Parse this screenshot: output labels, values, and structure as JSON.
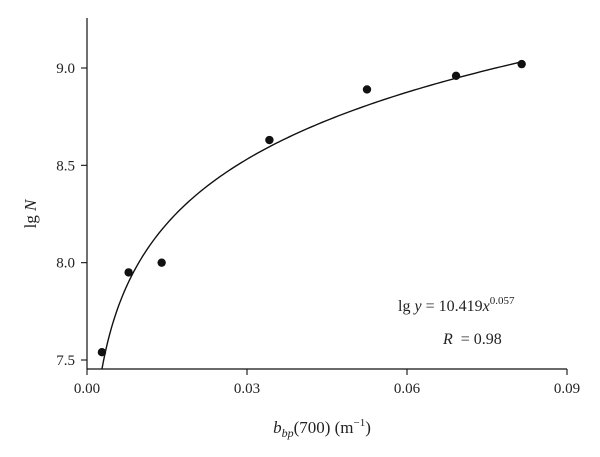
{
  "chart_data": {
    "type": "scatter",
    "title": "",
    "xlabel": {
      "main": "b",
      "sub": "bp",
      "rest": "(700) (m",
      "sup": "−1",
      "end": ")"
    },
    "ylabel": {
      "prefix": "lg ",
      "var": "N"
    },
    "xlim": [
      0,
      0.09
    ],
    "ylim": [
      7.5,
      9.25
    ],
    "xticks": [
      0.0,
      0.03,
      0.06,
      0.09
    ],
    "xtick_labels": [
      "0.00",
      "0.03",
      "0.06",
      "0.09"
    ],
    "yticks": [
      7.5,
      8.0,
      8.5,
      9.0
    ],
    "ytick_labels": [
      "7.5",
      "8.0",
      "8.5",
      "9.0"
    ],
    "grid": false,
    "series": [
      {
        "x": [
          0.0028,
          0.0078,
          0.014,
          0.0342,
          0.0525,
          0.0692,
          0.0815
        ],
        "y": [
          7.54,
          7.95,
          8.0,
          8.63,
          8.89,
          8.96,
          9.02
        ]
      }
    ],
    "fit": {
      "a": 10.419,
      "b": 0.057,
      "x_range": [
        0.0028,
        0.0815
      ]
    },
    "annotations": {
      "equation": {
        "lhs_fn": "lg ",
        "lhs_var": "y",
        "eq": " = 10.419",
        "var": "x",
        "exp": "0.057"
      },
      "r": {
        "var": "R",
        "text": "  = 0.98"
      }
    }
  }
}
